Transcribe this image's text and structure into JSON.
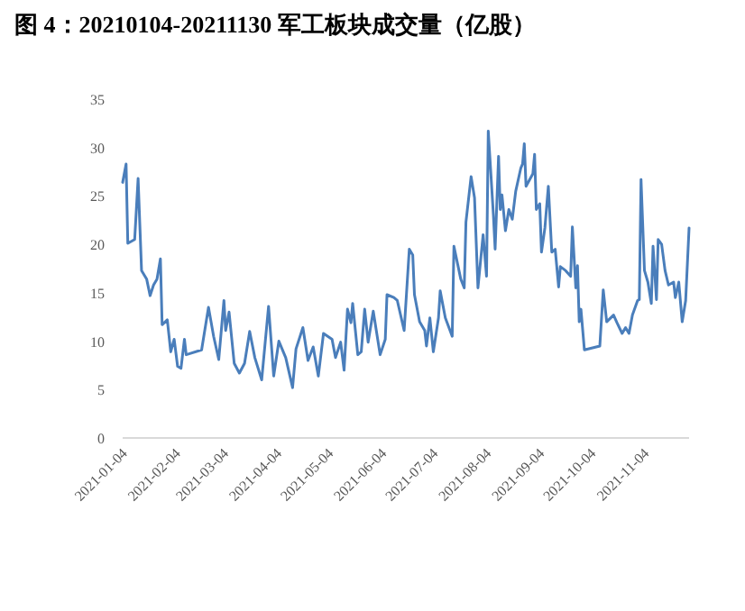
{
  "chart_data": {
    "type": "line",
    "title": "图 4：20210104-20211130 军工板块成交量（亿股）",
    "x": [
      "2021-01-04",
      "2021-01-06",
      "2021-01-07",
      "2021-01-11",
      "2021-01-13",
      "2021-01-15",
      "2021-01-18",
      "2021-01-20",
      "2021-01-22",
      "2021-01-24",
      "2021-01-26",
      "2021-01-27",
      "2021-01-30",
      "2021-02-01",
      "2021-02-03",
      "2021-02-05",
      "2021-02-07",
      "2021-02-09",
      "2021-02-10",
      "2021-02-19",
      "2021-02-23",
      "2021-02-26",
      "2021-03-01",
      "2021-03-04",
      "2021-03-05",
      "2021-03-07",
      "2021-03-10",
      "2021-03-13",
      "2021-03-16",
      "2021-03-19",
      "2021-03-22",
      "2021-03-26",
      "2021-03-30",
      "2021-04-02",
      "2021-04-05",
      "2021-04-09",
      "2021-04-13",
      "2021-04-15",
      "2021-04-19",
      "2021-04-22",
      "2021-04-25",
      "2021-04-28",
      "2021-05-01",
      "2021-05-06",
      "2021-05-08",
      "2021-05-11",
      "2021-05-13",
      "2021-05-15",
      "2021-05-17",
      "2021-05-18",
      "2021-05-21",
      "2021-05-23",
      "2021-05-25",
      "2021-05-27",
      "2021-05-30",
      "2021-06-03",
      "2021-06-06",
      "2021-06-07",
      "2021-06-11",
      "2021-06-13",
      "2021-06-17",
      "2021-06-20",
      "2021-06-22",
      "2021-06-23",
      "2021-06-26",
      "2021-06-29",
      "2021-06-30",
      "2021-07-02",
      "2021-07-04",
      "2021-07-07",
      "2021-07-08",
      "2021-07-11",
      "2021-07-15",
      "2021-07-16",
      "2021-07-20",
      "2021-07-22",
      "2021-07-23",
      "2021-07-26",
      "2021-07-28",
      "2021-07-30",
      "2021-08-02",
      "2021-08-04",
      "2021-08-05",
      "2021-08-08",
      "2021-08-09",
      "2021-08-11",
      "2021-08-12",
      "2021-08-13",
      "2021-08-15",
      "2021-08-17",
      "2021-08-19",
      "2021-08-21",
      "2021-08-24",
      "2021-08-25",
      "2021-08-26",
      "2021-08-27",
      "2021-08-31",
      "2021-09-01",
      "2021-09-02",
      "2021-09-04",
      "2021-09-05",
      "2021-09-07",
      "2021-09-09",
      "2021-09-11",
      "2021-09-13",
      "2021-09-15",
      "2021-09-16",
      "2021-09-19",
      "2021-09-22",
      "2021-09-23",
      "2021-09-25",
      "2021-09-26",
      "2021-09-27",
      "2021-09-28",
      "2021-09-30",
      "2021-10-09",
      "2021-10-11",
      "2021-10-13",
      "2021-10-17",
      "2021-10-19",
      "2021-10-22",
      "2021-10-24",
      "2021-10-26",
      "2021-10-28",
      "2021-10-31",
      "2021-11-01",
      "2021-11-02",
      "2021-11-04",
      "2021-11-06",
      "2021-11-08",
      "2021-11-09",
      "2021-11-11",
      "2021-11-12",
      "2021-11-14",
      "2021-11-16",
      "2021-11-18",
      "2021-11-21",
      "2021-11-22",
      "2021-11-24",
      "2021-11-26",
      "2021-11-28",
      "2021-11-30"
    ],
    "series": [
      {
        "color": "#4a7ebb",
        "values": [
          26.4,
          28.3,
          20.1,
          20.5,
          26.8,
          17.3,
          16.4,
          14.7,
          15.8,
          16.4,
          18.5,
          11.7,
          12.2,
          8.9,
          10.2,
          7.4,
          7.2,
          10.2,
          8.6,
          9.1,
          13.5,
          10.5,
          8.1,
          14.2,
          11.1,
          13,
          7.7,
          6.7,
          7.7,
          11,
          8.3,
          6,
          13.6,
          6.4,
          10,
          8.3,
          5.2,
          9.2,
          11.4,
          8,
          9.4,
          6.4,
          10.8,
          10.2,
          8.3,
          9.9,
          7,
          13.3,
          11.9,
          13.9,
          8.6,
          8.9,
          13.3,
          9.9,
          13.1,
          8.6,
          10.2,
          14.8,
          14.5,
          14.2,
          11.1,
          19.5,
          18.9,
          14.8,
          12,
          11.1,
          9.5,
          12.4,
          8.9,
          12.4,
          15.2,
          12.4,
          10.5,
          19.8,
          16.4,
          15.5,
          22.3,
          27,
          24.8,
          15.5,
          21,
          16.7,
          31.7,
          23,
          19.5,
          29.1,
          23.6,
          25.1,
          21.4,
          23.6,
          22.6,
          25.5,
          27.9,
          28.3,
          30.4,
          26,
          27.3,
          29.3,
          23.6,
          24.2,
          19.2,
          21.7,
          26,
          19.2,
          19.5,
          15.6,
          17.7,
          17.3,
          16.7,
          21.8,
          15.5,
          17.8,
          12,
          13.3,
          9.1,
          9.5,
          15.3,
          12,
          12.7,
          11.9,
          10.8,
          11.4,
          10.8,
          12.7,
          14.2,
          14.3,
          26.7,
          17.3,
          16.1,
          13.9,
          19.8,
          14.3,
          20.5,
          20,
          17.3,
          15.8,
          16.1,
          14.5,
          16.1,
          12,
          14.2,
          21.7
        ]
      }
    ],
    "xlim": [
      "2021-01-04",
      "2021-11-30"
    ],
    "xticks": [
      {
        "value": "2021-01-04",
        "label": "2021-01-04"
      },
      {
        "value": "2021-02-04",
        "label": "2021-02-04"
      },
      {
        "value": "2021-03-04",
        "label": "2021-03-04"
      },
      {
        "value": "2021-04-04",
        "label": "2021-04-04"
      },
      {
        "value": "2021-05-04",
        "label": "2021-05-04"
      },
      {
        "value": "2021-06-04",
        "label": "2021-06-04"
      },
      {
        "value": "2021-07-04",
        "label": "2021-07-04"
      },
      {
        "value": "2021-08-04",
        "label": "2021-08-04"
      },
      {
        "value": "2021-09-04",
        "label": "2021-09-04"
      },
      {
        "value": "2021-10-04",
        "label": "2021-10-04"
      },
      {
        "value": "2021-11-04",
        "label": "2021-11-04"
      }
    ],
    "ylim": [
      0,
      35
    ],
    "yticks": [
      0,
      5,
      10,
      15,
      20,
      25,
      30,
      35
    ],
    "grid": false,
    "marker": "none",
    "line_style": "solid"
  }
}
